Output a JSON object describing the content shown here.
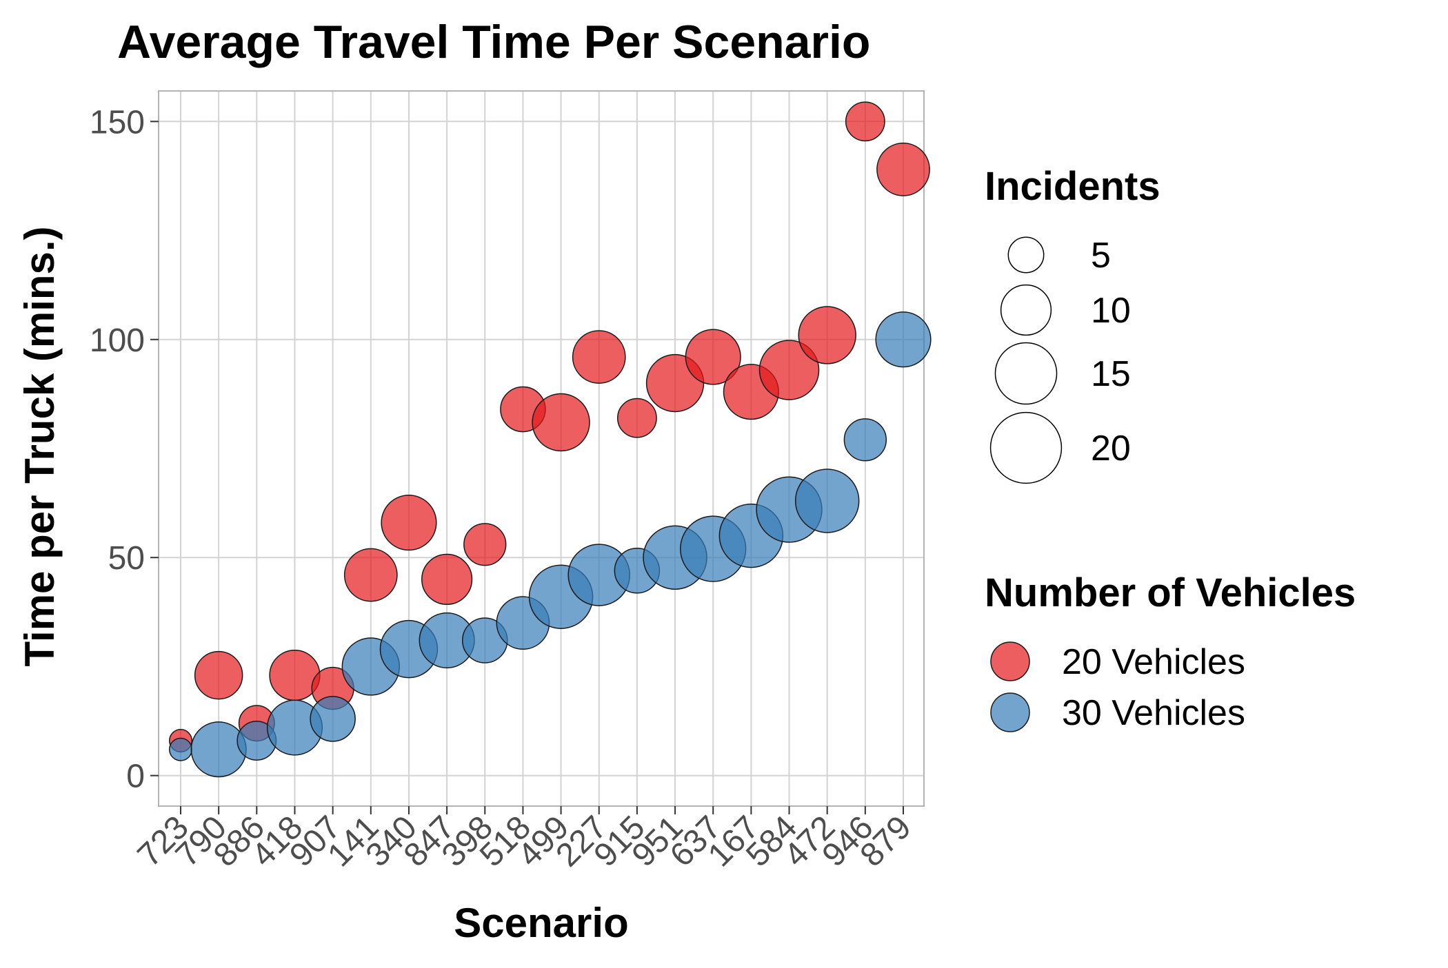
{
  "chart_data": {
    "type": "scatter",
    "title": "Average Travel Time Per Scenario",
    "xlabel": "Scenario",
    "ylabel": "Time per Truck (mins.)",
    "categories": [
      "723",
      "790",
      "886",
      "418",
      "907",
      "141",
      "340",
      "847",
      "398",
      "518",
      "499",
      "227",
      "915",
      "951",
      "637",
      "167",
      "584",
      "472",
      "946",
      "879"
    ],
    "ylim": [
      -7,
      157
    ],
    "yticks": [
      "0",
      "50",
      "100",
      "150"
    ],
    "grid": true,
    "legend_position": "right",
    "size_legend": {
      "title": "Incidents",
      "values": [
        "5",
        "10",
        "15",
        "20"
      ]
    },
    "color_legend": {
      "title": "Number of Vehicles",
      "entries": [
        {
          "label": "20 Vehicles",
          "color": "#e41a1c"
        },
        {
          "label": "30 Vehicles",
          "color": "#377eb8"
        }
      ]
    },
    "series": [
      {
        "name": "20 Vehicles",
        "color": "#e41a1c",
        "values": [
          8,
          23,
          12,
          23,
          20,
          46,
          58,
          45,
          53,
          84,
          81,
          96,
          82,
          90,
          96,
          88,
          93,
          101,
          150,
          139
        ],
        "incidents": [
          2,
          9,
          5,
          10,
          7,
          11,
          12,
          10,
          7,
          8,
          13,
          11,
          6,
          13,
          12,
          12,
          14,
          13,
          6,
          11
        ]
      },
      {
        "name": "30 Vehicles",
        "color": "#377eb8",
        "values": [
          6,
          6,
          8,
          11,
          13,
          25,
          29,
          31,
          31,
          35,
          41,
          46,
          47,
          50,
          52,
          55,
          61,
          63,
          77,
          100
        ],
        "incidents": [
          2,
          12,
          6,
          12,
          8,
          13,
          13,
          12,
          8,
          11,
          16,
          15,
          8,
          16,
          17,
          16,
          17,
          16,
          7,
          12
        ]
      }
    ]
  }
}
